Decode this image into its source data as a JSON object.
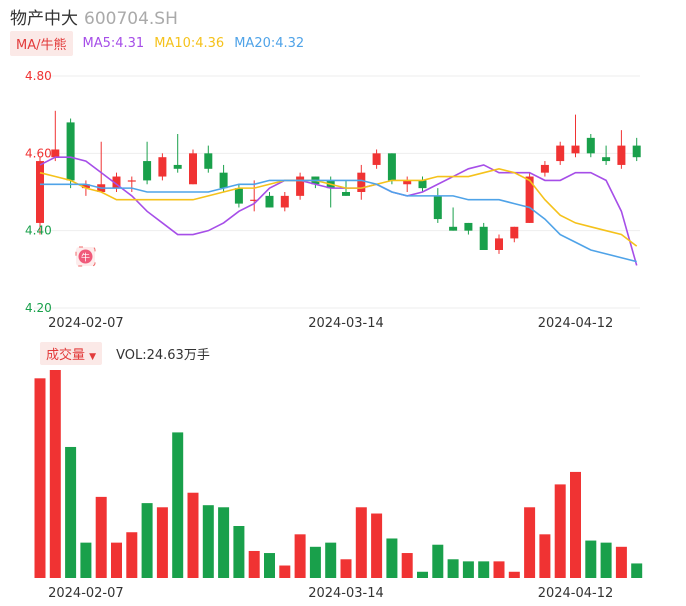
{
  "header": {
    "name": "物产中大",
    "code": "600704.SH"
  },
  "ma_legend": {
    "tag": "MA/牛熊",
    "items": [
      {
        "label": "MA5:4.31",
        "color": "#a64ee8"
      },
      {
        "label": "MA10:4.36",
        "color": "#f5c21b"
      },
      {
        "label": "MA20:4.32",
        "color": "#4fa3e8"
      }
    ]
  },
  "volume_legend": {
    "tag": "成交量",
    "arrow": "▼",
    "text": "VOL:24.63万手"
  },
  "colors": {
    "up": "#f03333",
    "down": "#19a04b"
  },
  "chart_data": [
    {
      "type": "candlestick",
      "ylim": [
        4.2,
        4.8
      ],
      "yticks": [
        {
          "label": "4.80",
          "value": 4.8,
          "color": "up"
        },
        {
          "label": "4.60",
          "value": 4.6,
          "color": "up"
        },
        {
          "label": "4.40",
          "value": 4.4,
          "color": "down"
        },
        {
          "label": "4.20",
          "value": 4.2,
          "color": "down"
        }
      ],
      "xticks": [
        {
          "label": "2024-02-07",
          "index": 3
        },
        {
          "label": "2024-03-14",
          "index": 20
        },
        {
          "label": "2024-04-12",
          "index": 35
        }
      ],
      "candles": [
        {
          "o": 4.42,
          "c": 4.58,
          "h": 4.59,
          "l": 4.39
        },
        {
          "o": 4.59,
          "c": 4.61,
          "h": 4.71,
          "l": 4.58
        },
        {
          "o": 4.68,
          "c": 4.53,
          "h": 4.69,
          "l": 4.51
        },
        {
          "o": 4.51,
          "c": 4.52,
          "h": 4.53,
          "l": 4.49
        },
        {
          "o": 4.5,
          "c": 4.52,
          "h": 4.63,
          "l": 4.5
        },
        {
          "o": 4.51,
          "c": 4.54,
          "h": 4.55,
          "l": 4.5
        },
        {
          "o": 4.53,
          "c": 4.53,
          "h": 4.54,
          "l": 4.5
        },
        {
          "o": 4.58,
          "c": 4.53,
          "h": 4.63,
          "l": 4.52
        },
        {
          "o": 4.54,
          "c": 4.59,
          "h": 4.6,
          "l": 4.53
        },
        {
          "o": 4.57,
          "c": 4.56,
          "h": 4.65,
          "l": 4.55
        },
        {
          "o": 4.52,
          "c": 4.6,
          "h": 4.61,
          "l": 4.52
        },
        {
          "o": 4.6,
          "c": 4.56,
          "h": 4.62,
          "l": 4.55
        },
        {
          "o": 4.55,
          "c": 4.51,
          "h": 4.57,
          "l": 4.5
        },
        {
          "o": 4.51,
          "c": 4.47,
          "h": 4.52,
          "l": 4.46
        },
        {
          "o": 4.48,
          "c": 4.48,
          "h": 4.53,
          "l": 4.45
        },
        {
          "o": 4.49,
          "c": 4.46,
          "h": 4.5,
          "l": 4.46
        },
        {
          "o": 4.46,
          "c": 4.49,
          "h": 4.5,
          "l": 4.45
        },
        {
          "o": 4.49,
          "c": 4.54,
          "h": 4.55,
          "l": 4.48
        },
        {
          "o": 4.54,
          "c": 4.52,
          "h": 4.54,
          "l": 4.51
        },
        {
          "o": 4.53,
          "c": 4.51,
          "h": 4.54,
          "l": 4.46
        },
        {
          "o": 4.5,
          "c": 4.49,
          "h": 4.53,
          "l": 4.49
        },
        {
          "o": 4.5,
          "c": 4.55,
          "h": 4.57,
          "l": 4.48
        },
        {
          "o": 4.57,
          "c": 4.6,
          "h": 4.61,
          "l": 4.56
        },
        {
          "o": 4.6,
          "c": 4.53,
          "h": 4.6,
          "l": 4.52
        },
        {
          "o": 4.52,
          "c": 4.53,
          "h": 4.54,
          "l": 4.5
        },
        {
          "o": 4.53,
          "c": 4.51,
          "h": 4.54,
          "l": 4.5
        },
        {
          "o": 4.49,
          "c": 4.43,
          "h": 4.51,
          "l": 4.42
        },
        {
          "o": 4.41,
          "c": 4.4,
          "h": 4.46,
          "l": 4.4
        },
        {
          "o": 4.42,
          "c": 4.4,
          "h": 4.42,
          "l": 4.39
        },
        {
          "o": 4.41,
          "c": 4.35,
          "h": 4.42,
          "l": 4.35
        },
        {
          "o": 4.35,
          "c": 4.38,
          "h": 4.39,
          "l": 4.34
        },
        {
          "o": 4.38,
          "c": 4.41,
          "h": 4.41,
          "l": 4.37
        },
        {
          "o": 4.42,
          "c": 4.54,
          "h": 4.55,
          "l": 4.42
        },
        {
          "o": 4.55,
          "c": 4.57,
          "h": 4.58,
          "l": 4.54
        },
        {
          "o": 4.58,
          "c": 4.62,
          "h": 4.63,
          "l": 4.57
        },
        {
          "o": 4.6,
          "c": 4.62,
          "h": 4.7,
          "l": 4.59
        },
        {
          "o": 4.64,
          "c": 4.6,
          "h": 4.65,
          "l": 4.59
        },
        {
          "o": 4.59,
          "c": 4.58,
          "h": 4.62,
          "l": 4.57
        },
        {
          "o": 4.57,
          "c": 4.62,
          "h": 4.66,
          "l": 4.56
        },
        {
          "o": 4.62,
          "c": 4.59,
          "h": 4.64,
          "l": 4.58
        }
      ],
      "ma5": [
        4.57,
        4.59,
        4.59,
        4.58,
        4.55,
        4.52,
        4.49,
        4.45,
        4.42,
        4.39,
        4.39,
        4.4,
        4.42,
        4.45,
        4.47,
        4.51,
        4.53,
        4.53,
        4.52,
        4.51,
        4.51,
        4.51,
        4.52,
        4.5,
        4.49,
        4.5,
        4.52,
        4.54,
        4.56,
        4.57,
        4.55,
        4.55,
        4.55,
        4.53,
        4.53,
        4.55,
        4.55,
        4.53,
        4.45,
        4.31
      ],
      "ma10": [
        4.55,
        4.54,
        4.53,
        4.51,
        4.5,
        4.48,
        4.48,
        4.48,
        4.48,
        4.48,
        4.48,
        4.49,
        4.5,
        4.51,
        4.51,
        4.52,
        4.53,
        4.53,
        4.53,
        4.52,
        4.51,
        4.51,
        4.52,
        4.53,
        4.53,
        4.53,
        4.54,
        4.54,
        4.54,
        4.55,
        4.56,
        4.55,
        4.53,
        4.48,
        4.44,
        4.42,
        4.41,
        4.4,
        4.39,
        4.36
      ],
      "ma20": [
        4.52,
        4.52,
        4.52,
        4.52,
        4.51,
        4.51,
        4.51,
        4.5,
        4.5,
        4.5,
        4.5,
        4.5,
        4.51,
        4.52,
        4.52,
        4.53,
        4.53,
        4.53,
        4.53,
        4.53,
        4.53,
        4.53,
        4.52,
        4.5,
        4.49,
        4.49,
        4.49,
        4.49,
        4.48,
        4.48,
        4.48,
        4.47,
        4.46,
        4.43,
        4.39,
        4.37,
        4.35,
        4.34,
        4.33,
        4.32
      ]
    },
    {
      "type": "bar",
      "ylim": [
        0,
        1
      ],
      "values": [
        0.96,
        1.0,
        0.63,
        0.17,
        0.39,
        0.17,
        0.22,
        0.36,
        0.34,
        0.7,
        0.41,
        0.35,
        0.34,
        0.25,
        0.13,
        0.12,
        0.06,
        0.21,
        0.15,
        0.17,
        0.09,
        0.34,
        0.31,
        0.19,
        0.12,
        0.03,
        0.16,
        0.09,
        0.08,
        0.08,
        0.08,
        0.03,
        0.34,
        0.21,
        0.45,
        0.51,
        0.18,
        0.17,
        0.15,
        0.07
      ],
      "directions": [
        "up",
        "up",
        "down",
        "down",
        "up",
        "up",
        "up",
        "down",
        "up",
        "down",
        "up",
        "down",
        "down",
        "down",
        "up",
        "down",
        "up",
        "up",
        "down",
        "down",
        "up",
        "up",
        "up",
        "down",
        "up",
        "down",
        "down",
        "down",
        "down",
        "down",
        "up",
        "up",
        "up",
        "up",
        "up",
        "up",
        "down",
        "down",
        "up",
        "down"
      ]
    }
  ]
}
